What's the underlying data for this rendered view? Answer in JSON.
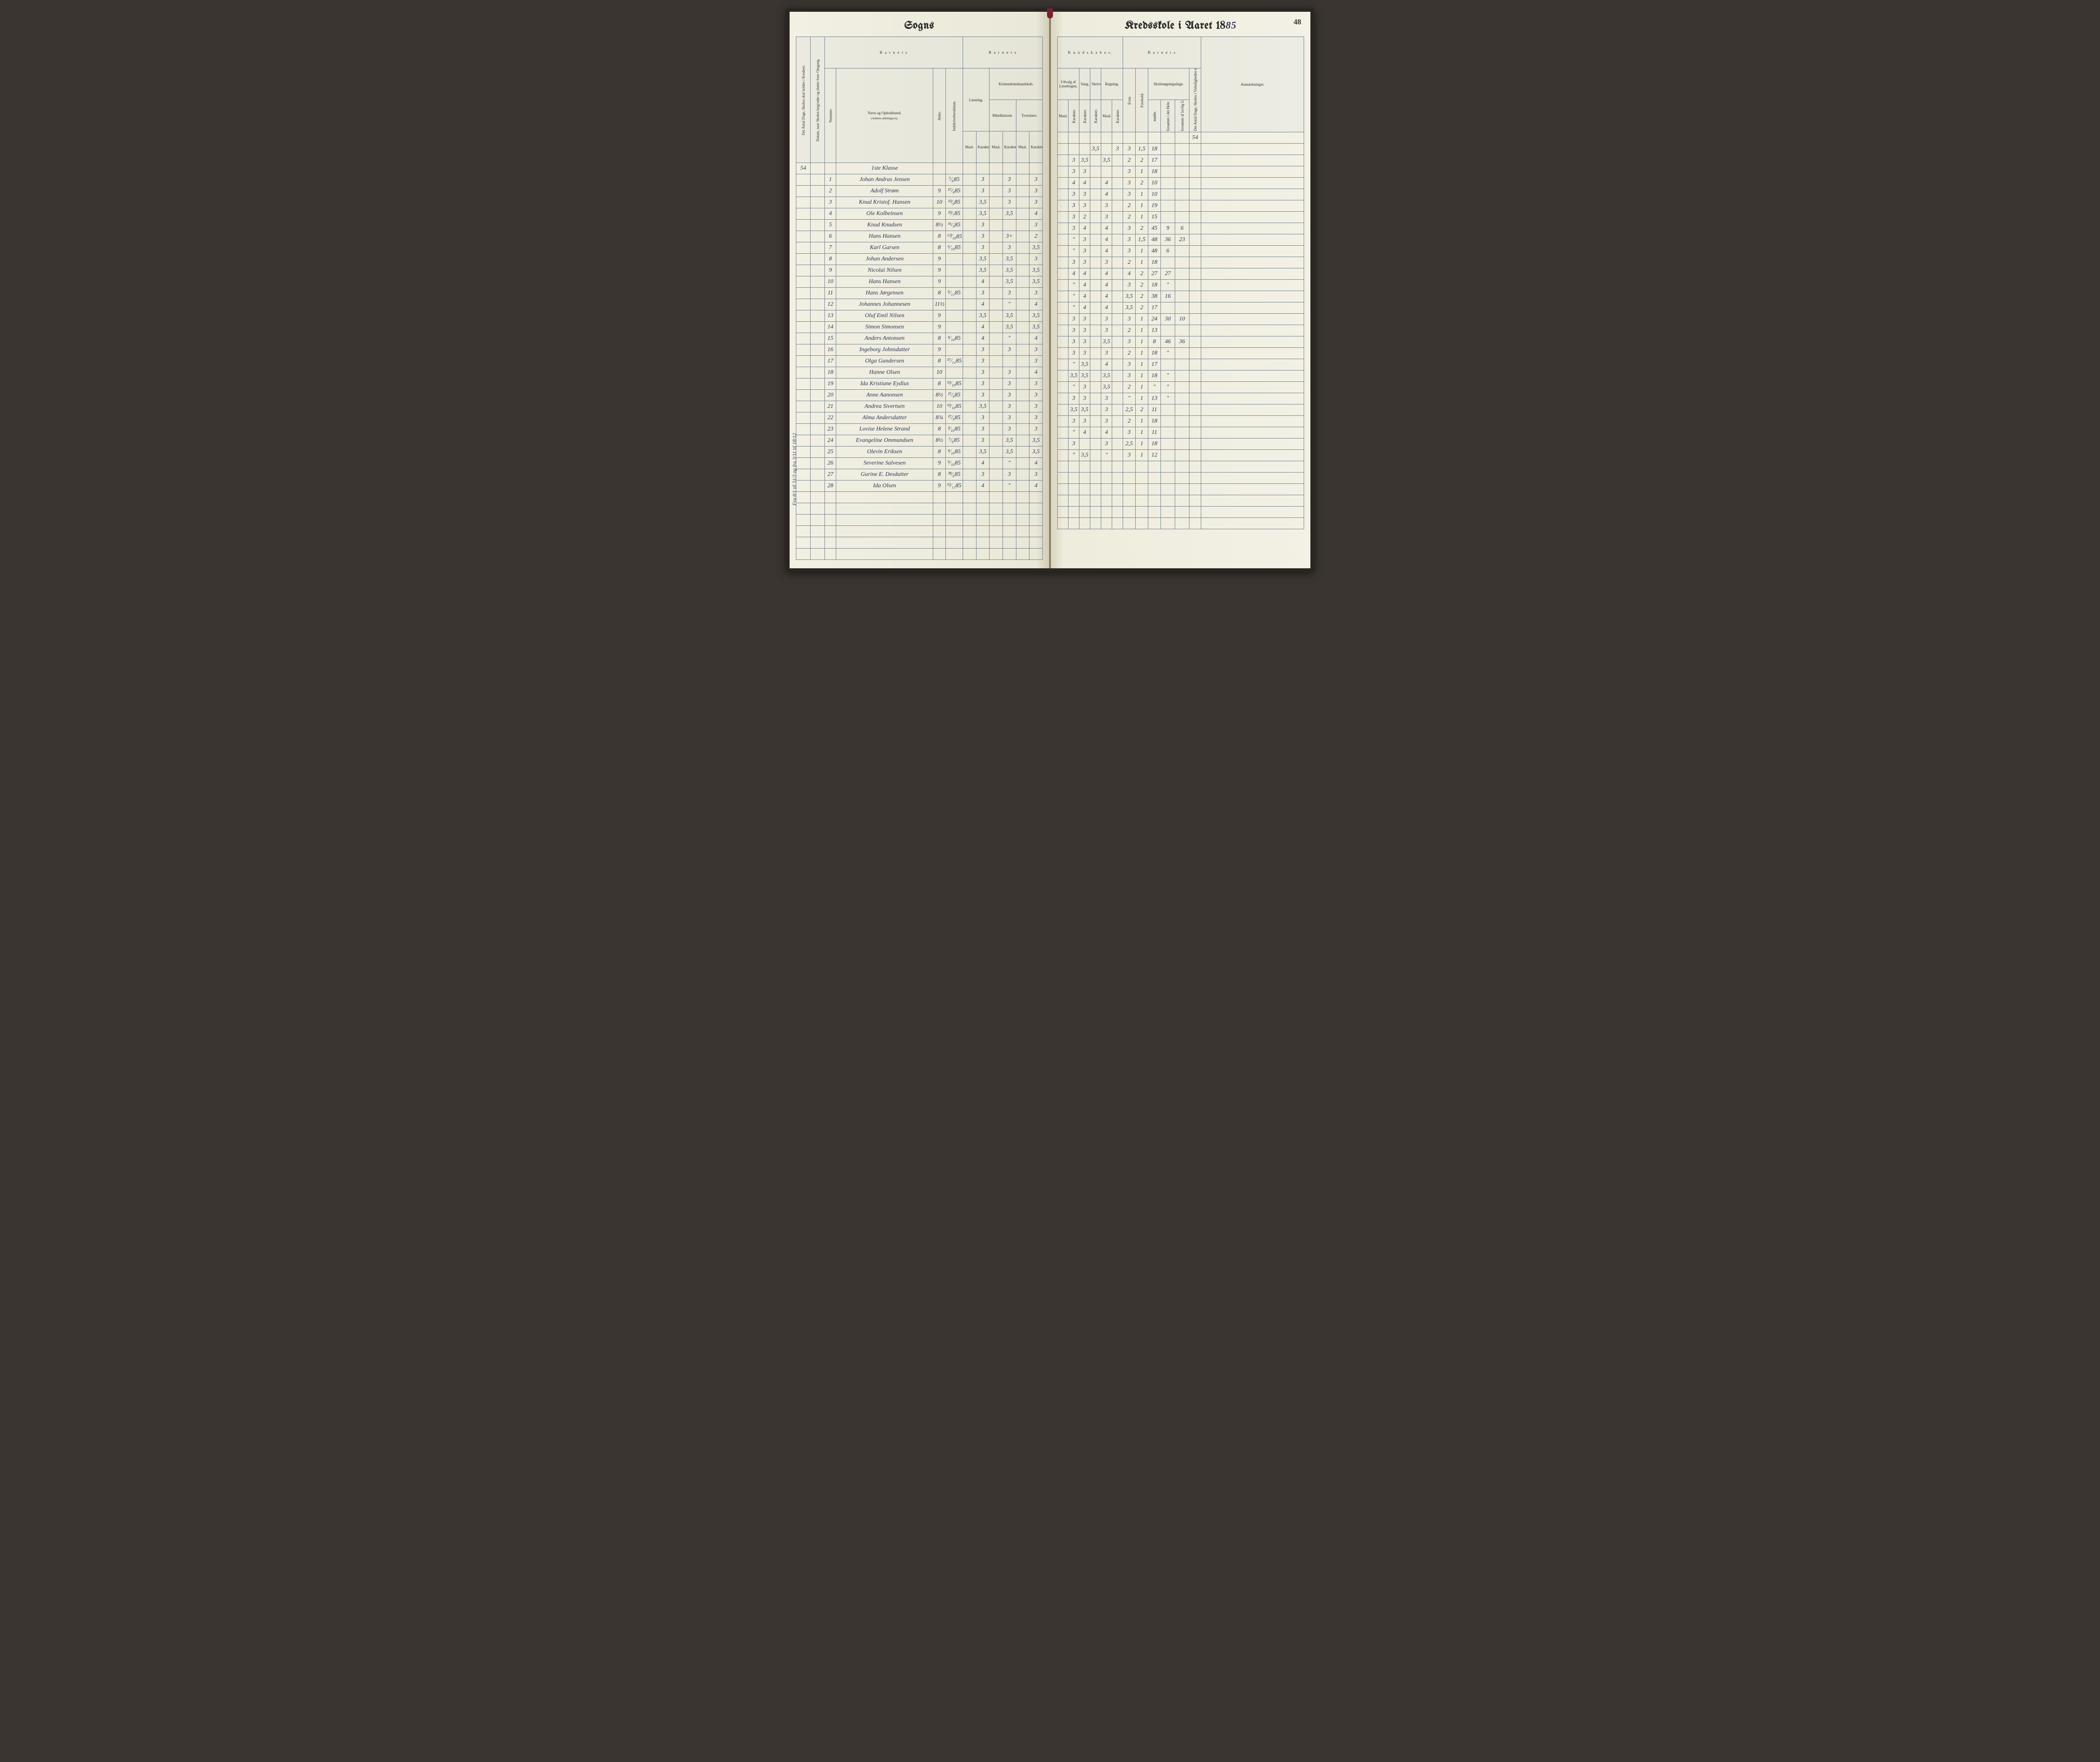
{
  "page_number": "48",
  "left_title": "Sogns",
  "right_title_prefix": "Kredsskole i Aaret 18",
  "right_title_year": "85",
  "klasse_label": "1ste Klasse",
  "days_54": "54",
  "margin_note": "Fra 8/1 til 31/3 og fra 3/11 til 18/12",
  "left_headers": {
    "group_barnets": "B a r n e t s",
    "col_dage": "Det Antal Dage, Skolen skal holdes i Kredsen.",
    "col_datum": "Datum, naar Skolen begynder og slutter hver Omgang.",
    "col_nummer": "Nummer.",
    "col_navn": "Navn og Opholdssted.",
    "col_navn_sub": "(Anføres afdelingsvis).",
    "col_alder": "Alder.",
    "col_indskr": "Indskrivelsesdatum.",
    "group_laesning": "Læsning.",
    "group_kristendom": "Kristendomskundskab.",
    "sub_bibel": "Bibelhistorie.",
    "sub_troes": "Troeslære.",
    "sub_maal": "Maal.",
    "sub_karakter": "Karakter."
  },
  "right_headers": {
    "group_kundskaber": "K u n d s k a b e r.",
    "group_barnets": "B a r n e t s",
    "sub_udvalg": "Udvalg af Læsebogen.",
    "sub_sang": "Sang.",
    "sub_skriv": "Skrivning.",
    "sub_regning": "Regning.",
    "sub_maal": "Maal.",
    "sub_karakter": "Karakter.",
    "col_evne": "Evne.",
    "col_forhold": "Forehold.",
    "group_skolesog": "Skolesøgningsdage.",
    "sub_modte": "mødte.",
    "sub_forsomte_hele": "forsømte i det Hele.",
    "sub_forsomte_lov": "forsømte af lovlig Grund.",
    "col_antal_dage": "Det Antal Dage, Skolen i Virkeligheden er holdt.",
    "col_anm": "Anmærkninger."
  },
  "rows": [
    {
      "n": "1",
      "name": "Johan Andras Jensen",
      "alder": "",
      "ind": "⁷⁄₆85",
      "l_m": "",
      "l_k": "3",
      "b_m": "",
      "b_k": "3",
      "t_m": "",
      "t_k": "3",
      "u_m": "",
      "u_k": "",
      "sa": "",
      "sk": "3,5",
      "r_m": "",
      "r_k": "3",
      "ev": "3",
      "fo": "1,5",
      "mo": "18",
      "fh": "",
      "fl": ""
    },
    {
      "n": "2",
      "name": "Adolf Strøm",
      "alder": "9",
      "ind": "¹⁷⁄₉85",
      "l_m": "",
      "l_k": "3",
      "b_m": "",
      "b_k": "3",
      "t_m": "",
      "t_k": "3",
      "u_m": "",
      "u_k": "3",
      "sa": "3,5",
      "sk": "",
      "r_m": "3,5",
      "r_k": "",
      "ev": "2",
      "fo": "2",
      "mo": "17",
      "fh": "",
      "fl": ""
    },
    {
      "n": "3",
      "name": "Knud Kristof. Hansen",
      "alder": "10",
      "ind": "¹³⁄₉85",
      "l_m": "",
      "l_k": "3,5",
      "b_m": "",
      "b_k": "3",
      "t_m": "",
      "t_k": "3",
      "u_m": "",
      "u_k": "3",
      "sa": "3",
      "sk": "",
      "r_m": "",
      "r_k": "",
      "ev": "3",
      "fo": "1",
      "mo": "18",
      "fh": "",
      "fl": ""
    },
    {
      "n": "4",
      "name": "Ole Kolbeinsen",
      "alder": "9",
      "ind": "²³⁄₇85",
      "l_m": "",
      "l_k": "3,5",
      "b_m": "",
      "b_k": "3,5",
      "t_m": "",
      "t_k": "4",
      "u_m": "",
      "u_k": "4",
      "sa": "4",
      "sk": "",
      "r_m": "4",
      "r_k": "",
      "ev": "3",
      "fo": "2",
      "mo": "10",
      "fh": "",
      "fl": ""
    },
    {
      "n": "5",
      "name": "Knud Knudsen",
      "alder": "8½",
      "ind": "¹⁶⁄₄85",
      "l_m": "",
      "l_k": "3",
      "b_m": "",
      "b_k": "",
      "t_m": "",
      "t_k": "3",
      "u_m": "",
      "u_k": "3",
      "sa": "3",
      "sk": "",
      "r_m": "4",
      "r_k": "",
      "ev": "3",
      "fo": "1",
      "mo": "10",
      "fh": "",
      "fl": ""
    },
    {
      "n": "6",
      "name": "Hans Hansen",
      "alder": "8",
      "ind": "¹⁰⁄₁₀85",
      "l_m": "",
      "l_k": "3",
      "b_m": "",
      "b_k": "3+",
      "t_m": "",
      "t_k": "2",
      "u_m": "",
      "u_k": "3",
      "sa": "3",
      "sk": "",
      "r_m": "3",
      "r_k": "",
      "ev": "2",
      "fo": "1",
      "mo": "19",
      "fh": "",
      "fl": ""
    },
    {
      "n": "7",
      "name": "Karl Garsen",
      "alder": "8",
      "ind": "⁶⁄₁₀85",
      "l_m": "",
      "l_k": "3",
      "b_m": "",
      "b_k": "3",
      "t_m": "",
      "t_k": "3,5",
      "u_m": "",
      "u_k": "3",
      "sa": "2",
      "sk": "",
      "r_m": "3",
      "r_k": "",
      "ev": "2",
      "fo": "1",
      "mo": "15",
      "fh": "",
      "fl": ""
    },
    {
      "n": "8",
      "name": "Johan Andersen",
      "alder": "9",
      "ind": "",
      "l_m": "",
      "l_k": "3,5",
      "b_m": "",
      "b_k": "3,5",
      "t_m": "",
      "t_k": "3",
      "u_m": "",
      "u_k": "3",
      "sa": "4",
      "sk": "",
      "r_m": "4",
      "r_k": "",
      "ev": "3",
      "fo": "2",
      "mo": "45",
      "fh": "9",
      "fl": "6"
    },
    {
      "n": "9",
      "name": "Nicolai Nilsen",
      "alder": "9",
      "ind": "",
      "l_m": "",
      "l_k": "3,5",
      "b_m": "",
      "b_k": "3,5",
      "t_m": "",
      "t_k": "3,5",
      "u_m": "",
      "u_k": "\"",
      "sa": "3",
      "sk": "",
      "r_m": "4",
      "r_k": "",
      "ev": "3",
      "fo": "1,5",
      "mo": "48",
      "fh": "36",
      "fl": "23"
    },
    {
      "n": "10",
      "name": "Hans Hansen",
      "alder": "9",
      "ind": "",
      "l_m": "",
      "l_k": "4",
      "b_m": "",
      "b_k": "3,5",
      "t_m": "",
      "t_k": "3,5",
      "u_m": "",
      "u_k": "\"",
      "sa": "3",
      "sk": "",
      "r_m": "4",
      "r_k": "",
      "ev": "3",
      "fo": "1",
      "mo": "48",
      "fh": "6",
      "fl": ""
    },
    {
      "n": "11",
      "name": "Hans Jørgensen",
      "alder": "8",
      "ind": "⁵⁄₁₁85",
      "l_m": "",
      "l_k": "3",
      "b_m": "",
      "b_k": "3",
      "t_m": "",
      "t_k": "3",
      "u_m": "",
      "u_k": "3",
      "sa": "3",
      "sk": "",
      "r_m": "3",
      "r_k": "",
      "ev": "2",
      "fo": "1",
      "mo": "18",
      "fh": "",
      "fl": ""
    },
    {
      "n": "12",
      "name": "Johannes Johannesen",
      "alder": "11½",
      "ind": "",
      "l_m": "",
      "l_k": "4",
      "b_m": "",
      "b_k": "\"",
      "t_m": "",
      "t_k": "4",
      "u_m": "",
      "u_k": "4",
      "sa": "4",
      "sk": "",
      "r_m": "4",
      "r_k": "",
      "ev": "4",
      "fo": "2",
      "mo": "27",
      "fh": "27",
      "fl": ""
    },
    {
      "n": "13",
      "name": "Oluf Emil Nilsen",
      "alder": "9",
      "ind": "",
      "l_m": "",
      "l_k": "3,5",
      "b_m": "",
      "b_k": "3,5",
      "t_m": "",
      "t_k": "3,5",
      "u_m": "",
      "u_k": "\"",
      "sa": "4",
      "sk": "",
      "r_m": "4",
      "r_k": "",
      "ev": "3",
      "fo": "2",
      "mo": "18",
      "fh": "\"",
      "fl": ""
    },
    {
      "n": "14",
      "name": "Simon Simonsen",
      "alder": "9",
      "ind": "",
      "l_m": "",
      "l_k": "4",
      "b_m": "",
      "b_k": "3,5",
      "t_m": "",
      "t_k": "3,5",
      "u_m": "",
      "u_k": "\"",
      "sa": "4",
      "sk": "",
      "r_m": "4",
      "r_k": "",
      "ev": "3,5",
      "fo": "2",
      "mo": "38",
      "fh": "16",
      "fl": ""
    },
    {
      "n": "15",
      "name": "Anders Antonsen",
      "alder": "8",
      "ind": "⁴⁄₁₀85",
      "l_m": "",
      "l_k": "4",
      "b_m": "",
      "b_k": "\"",
      "t_m": "",
      "t_k": "4",
      "u_m": "",
      "u_k": "\"",
      "sa": "4",
      "sk": "",
      "r_m": "4",
      "r_k": "",
      "ev": "3,5",
      "fo": "2",
      "mo": "17",
      "fh": "",
      "fl": ""
    },
    {
      "n": "16",
      "name": "Ingeborg Johnsdatter",
      "alder": "9",
      "ind": "",
      "l_m": "",
      "l_k": "3",
      "b_m": "",
      "b_k": "3",
      "t_m": "",
      "t_k": "3",
      "u_m": "",
      "u_k": "3",
      "sa": "3",
      "sk": "",
      "r_m": "3",
      "r_k": "",
      "ev": "3",
      "fo": "1",
      "mo": "24",
      "fh": "30",
      "fl": "10"
    },
    {
      "n": "17",
      "name": "Olga Gundersen",
      "alder": "8",
      "ind": "¹⁷⁄₁₁85",
      "l_m": "",
      "l_k": "3",
      "b_m": "",
      "b_k": "",
      "t_m": "",
      "t_k": "3",
      "u_m": "",
      "u_k": "3",
      "sa": "3",
      "sk": "",
      "r_m": "3",
      "r_k": "",
      "ev": "2",
      "fo": "1",
      "mo": "13",
      "fh": "",
      "fl": ""
    },
    {
      "n": "18",
      "name": "Hanne Olsen",
      "alder": "10",
      "ind": "",
      "l_m": "",
      "l_k": "3",
      "b_m": "",
      "b_k": "3",
      "t_m": "",
      "t_k": "4",
      "u_m": "",
      "u_k": "3",
      "sa": "3",
      "sk": "",
      "r_m": "3,5",
      "r_k": "",
      "ev": "3",
      "fo": "1",
      "mo": "8",
      "fh": "46",
      "fl": "36"
    },
    {
      "n": "19",
      "name": "Ida Kristiane Eydius",
      "alder": "8",
      "ind": "¹³⁄₁₀85",
      "l_m": "",
      "l_k": "3",
      "b_m": "",
      "b_k": "3",
      "t_m": "",
      "t_k": "3",
      "u_m": "",
      "u_k": "3",
      "sa": "3",
      "sk": "",
      "r_m": "3",
      "r_k": "",
      "ev": "2",
      "fo": "1",
      "mo": "18",
      "fh": "\"",
      "fl": ""
    },
    {
      "n": "20",
      "name": "Anne Aanonsen",
      "alder": "8½",
      "ind": "¹⁷⁄₉85",
      "l_m": "",
      "l_k": "3",
      "b_m": "",
      "b_k": "3",
      "t_m": "",
      "t_k": "3",
      "u_m": "",
      "u_k": "\"",
      "sa": "3,5",
      "sk": "",
      "r_m": "4",
      "r_k": "",
      "ev": "3",
      "fo": "1",
      "mo": "17",
      "fh": "",
      "fl": ""
    },
    {
      "n": "21",
      "name": "Andrea Sivertsen",
      "alder": "10",
      "ind": "¹³⁄₁₀85",
      "l_m": "",
      "l_k": "3,5",
      "b_m": "",
      "b_k": "3",
      "t_m": "",
      "t_k": "3",
      "u_m": "",
      "u_k": "3,5",
      "sa": "3,5",
      "sk": "",
      "r_m": "3,5",
      "r_k": "",
      "ev": "3",
      "fo": "1",
      "mo": "18",
      "fh": "\"",
      "fl": ""
    },
    {
      "n": "22",
      "name": "Alma Andersdatter",
      "alder": "8¾",
      "ind": "¹⁷⁄₉85",
      "l_m": "",
      "l_k": "3",
      "b_m": "",
      "b_k": "3",
      "t_m": "",
      "t_k": "3",
      "u_m": "",
      "u_k": "\"",
      "sa": "3",
      "sk": "",
      "r_m": "3,5",
      "r_k": "",
      "ev": "2",
      "fo": "1",
      "mo": "\"",
      "fh": "\"",
      "fl": ""
    },
    {
      "n": "23",
      "name": "Lovise Helene Strand",
      "alder": "8",
      "ind": "³⁄₁₀85",
      "l_m": "",
      "l_k": "3",
      "b_m": "",
      "b_k": "3",
      "t_m": "",
      "t_k": "3",
      "u_m": "",
      "u_k": "3",
      "sa": "3",
      "sk": "",
      "r_m": "3",
      "r_k": "",
      "ev": "\"",
      "fo": "1",
      "mo": "13",
      "fh": "\"",
      "fl": ""
    },
    {
      "n": "24",
      "name": "Evangeline Ommundsen",
      "alder": "8½",
      "ind": "⁷⁄₆85",
      "l_m": "",
      "l_k": "3",
      "b_m": "",
      "b_k": "3,5",
      "t_m": "",
      "t_k": "3,5",
      "u_m": "",
      "u_k": "3,5",
      "sa": "3,5",
      "sk": "",
      "r_m": "3",
      "r_k": "",
      "ev": "2,5",
      "fo": "2",
      "mo": "11",
      "fh": "",
      "fl": ""
    },
    {
      "n": "25",
      "name": "Olevin Eriksen",
      "alder": "8",
      "ind": "⁴⁄₁₀85",
      "l_m": "",
      "l_k": "3,5",
      "b_m": "",
      "b_k": "3,5",
      "t_m": "",
      "t_k": "3,5",
      "u_m": "",
      "u_k": "3",
      "sa": "3",
      "sk": "",
      "r_m": "3",
      "r_k": "",
      "ev": "2",
      "fo": "1",
      "mo": "18",
      "fh": "",
      "fl": ""
    },
    {
      "n": "26",
      "name": "Severine Salvesen",
      "alder": "9",
      "ind": "⁹⁄₁₀85",
      "l_m": "",
      "l_k": "4",
      "b_m": "",
      "b_k": "\"",
      "t_m": "",
      "t_k": "4",
      "u_m": "",
      "u_k": "\"",
      "sa": "4",
      "sk": "",
      "r_m": "4",
      "r_k": "",
      "ev": "3",
      "fo": "1",
      "mo": "11",
      "fh": "",
      "fl": ""
    },
    {
      "n": "27",
      "name": "Gurine E. Desdatter",
      "alder": "8",
      "ind": "²⁸⁄₆85",
      "l_m": "",
      "l_k": "3",
      "b_m": "",
      "b_k": "3",
      "t_m": "",
      "t_k": "3",
      "u_m": "",
      "u_k": "3",
      "sa": "",
      "sk": "",
      "r_m": "3",
      "r_k": "",
      "ev": "2,5",
      "fo": "1",
      "mo": "18",
      "fh": "",
      "fl": ""
    },
    {
      "n": "28",
      "name": "Ida Olsen",
      "alder": "9",
      "ind": "¹²⁄₁₁85",
      "l_m": "",
      "l_k": "4",
      "b_m": "",
      "b_k": "\"",
      "t_m": "",
      "t_k": "4",
      "u_m": "",
      "u_k": "\"",
      "sa": "3,5",
      "sk": "",
      "r_m": "\"",
      "r_k": "",
      "ev": "3",
      "fo": "1",
      "mo": "12",
      "fh": "",
      "fl": ""
    }
  ],
  "colors": {
    "ink": "#2a3555",
    "rule": "#6a7a8a",
    "paper": "#f3f1e5"
  }
}
